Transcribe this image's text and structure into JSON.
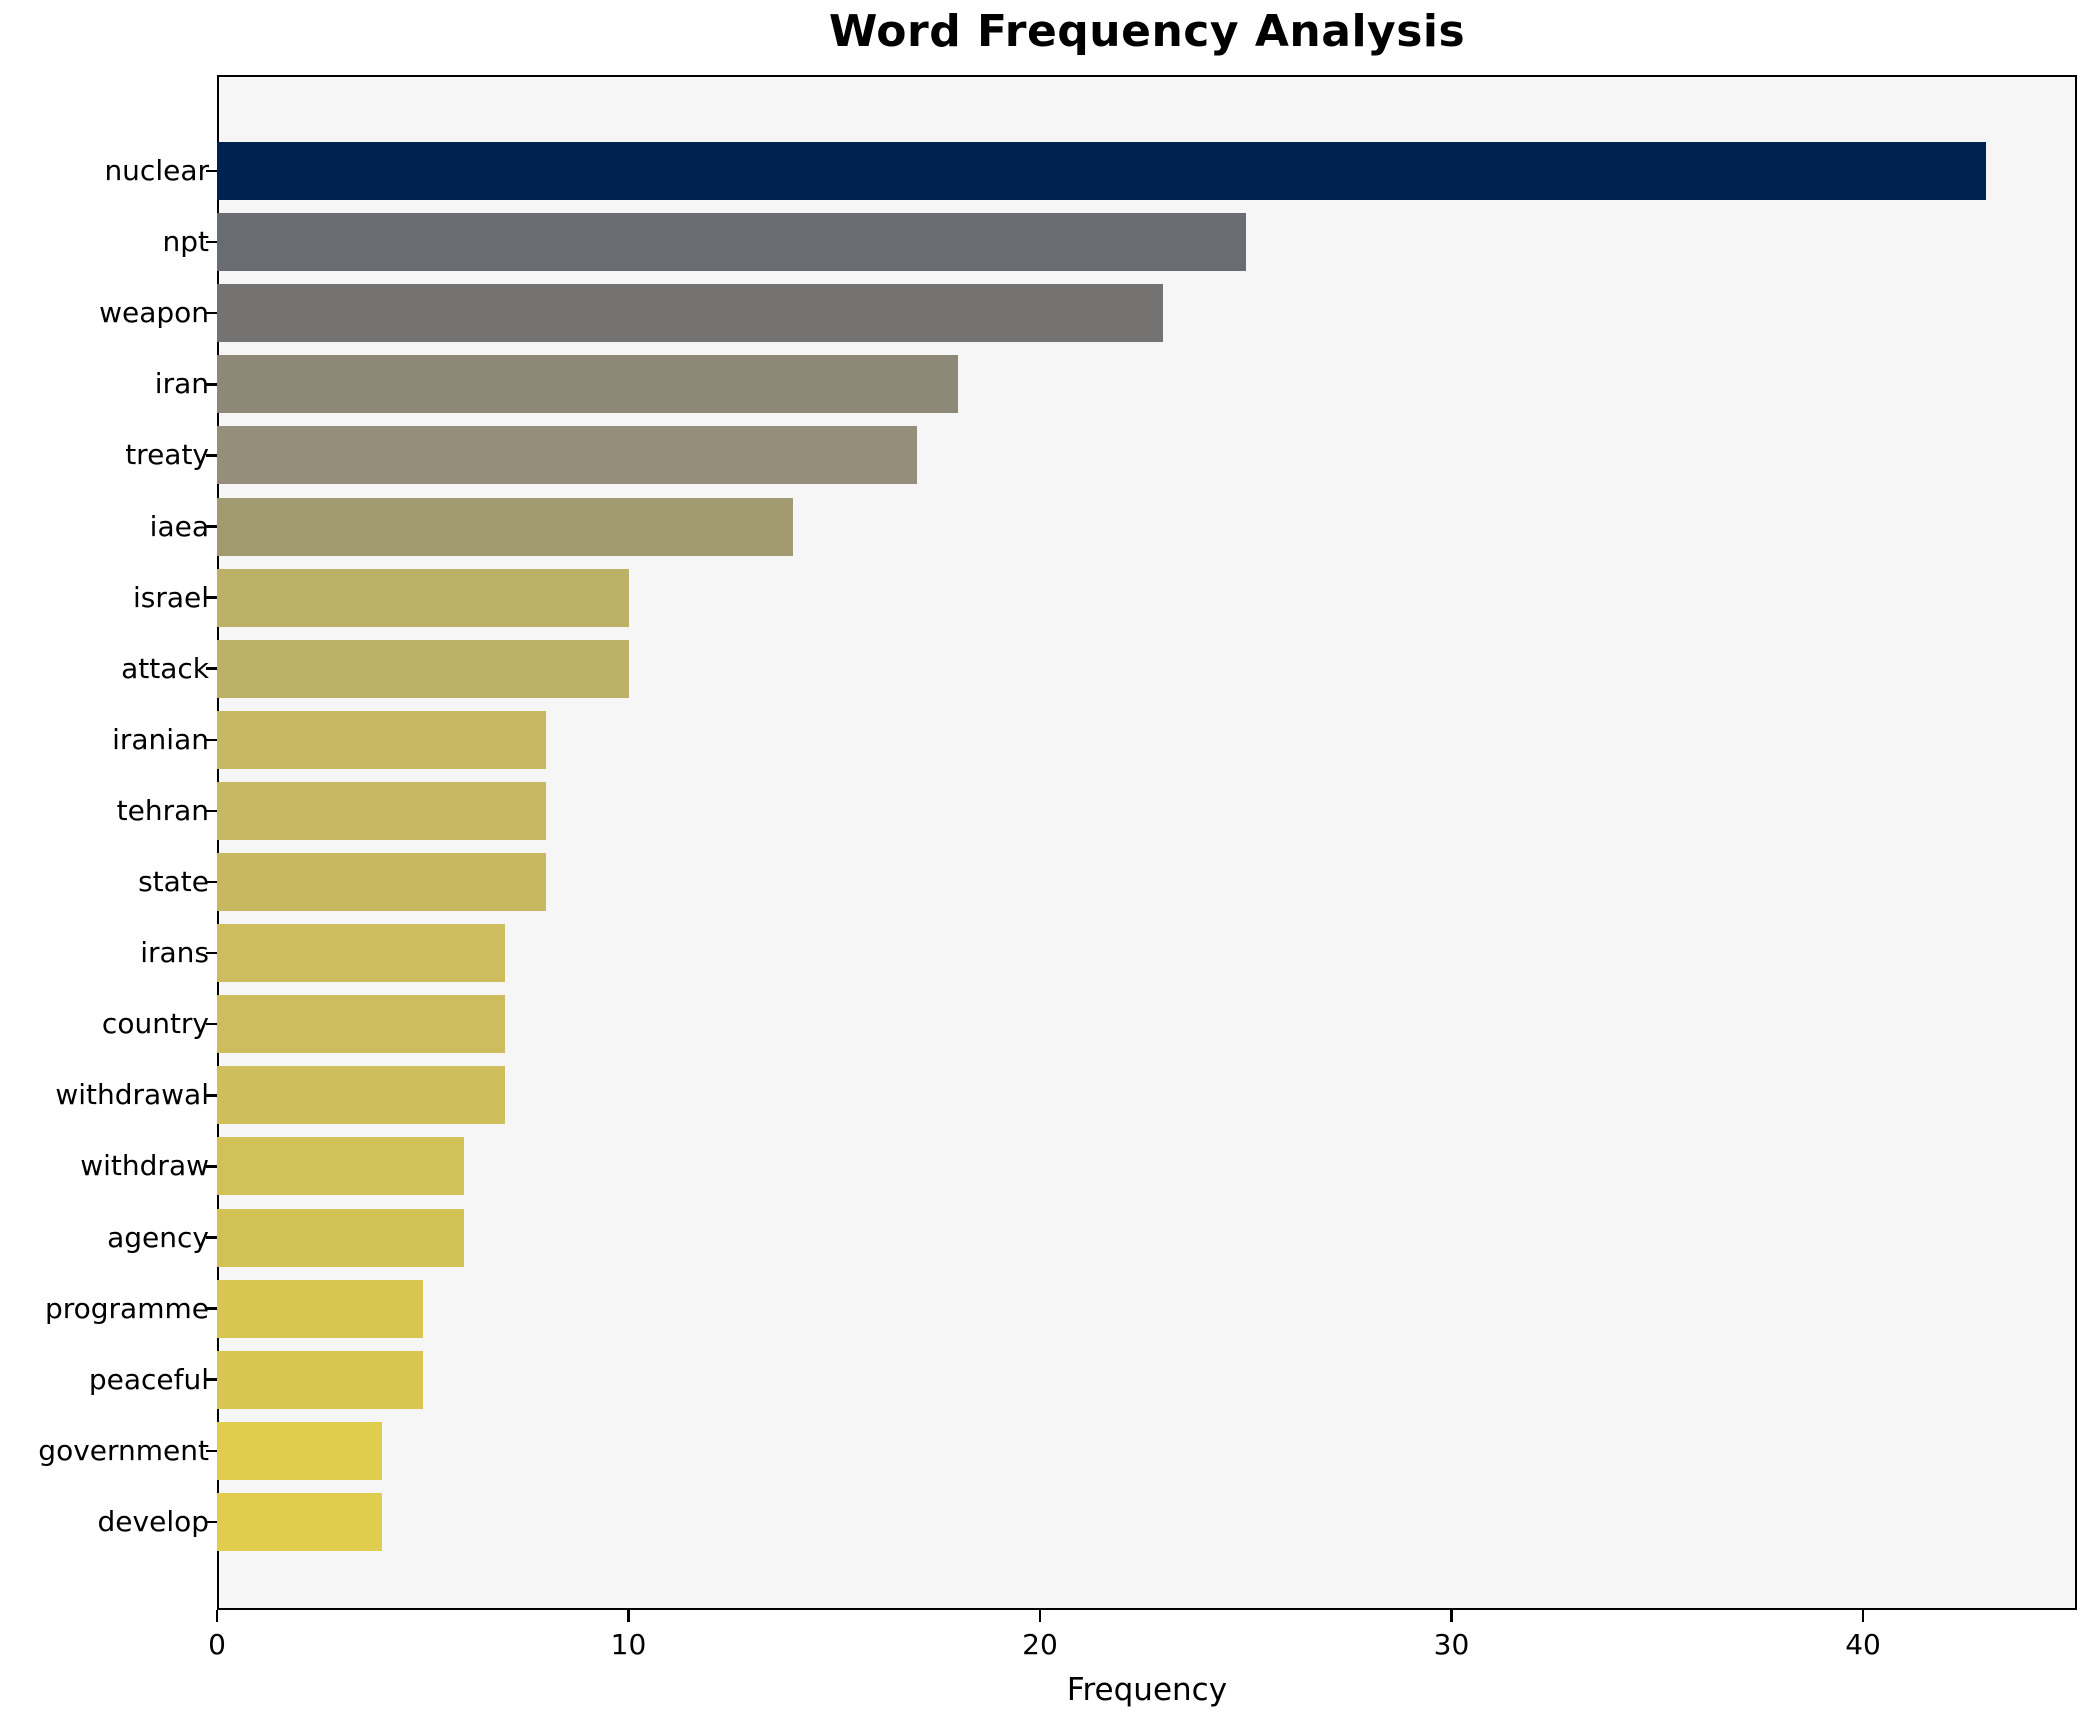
{
  "chart_data": {
    "type": "bar",
    "orientation": "horizontal",
    "title": "Word Frequency Analysis",
    "xlabel": "Frequency",
    "ylabel": "",
    "grid": false,
    "legend": null,
    "xlim": [
      0,
      45.2
    ],
    "x_ticks": [
      0,
      10,
      20,
      30,
      40
    ],
    "categories": [
      "nuclear",
      "npt",
      "weapon",
      "iran",
      "treaty",
      "iaea",
      "israel",
      "attack",
      "iranian",
      "tehran",
      "state",
      "irans",
      "country",
      "withdrawal",
      "withdraw",
      "agency",
      "programme",
      "peaceful",
      "government",
      "develop"
    ],
    "values": [
      43,
      25,
      23,
      18,
      17,
      14,
      10,
      10,
      8,
      8,
      8,
      7,
      7,
      7,
      6,
      6,
      5,
      5,
      4,
      4
    ],
    "bar_colors": [
      "#002250",
      "#696c72",
      "#757372",
      "#8d8878",
      "#948e7b",
      "#a29b72",
      "#bdb167",
      "#bdb167",
      "#c7b862",
      "#c7b862",
      "#c8b960",
      "#cdbd5e",
      "#cdbd5e",
      "#cfbe5c",
      "#d2c156",
      "#d2c155",
      "#d8c652",
      "#d8c652",
      "#e0cc4d",
      "#e0cc4d"
    ],
    "plot_background": "#f6f6f7",
    "figure_background": "#ffffff",
    "spine_color": "#000000"
  }
}
